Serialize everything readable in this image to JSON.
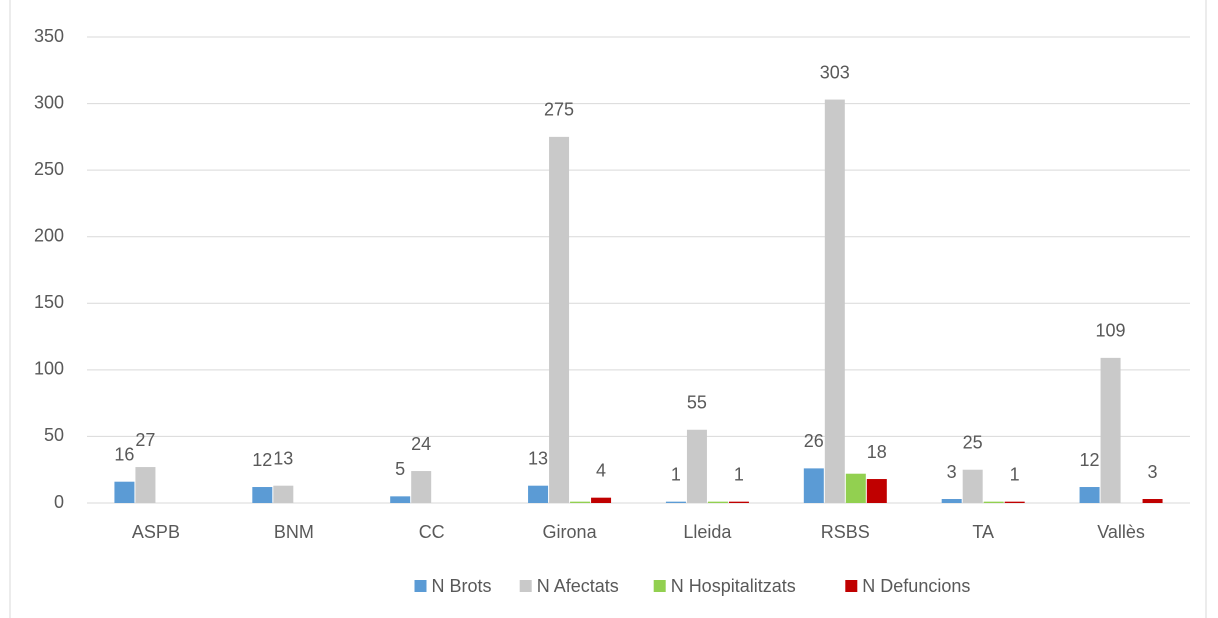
{
  "chart_data": {
    "type": "bar",
    "categories": [
      "ASPB",
      "BNM",
      "CC",
      "Girona",
      "Lleida",
      "RSBS",
      "TA",
      "Vallès"
    ],
    "series": [
      {
        "name": "N Brots",
        "color": "#5b9bd5",
        "show_labels": true,
        "values": [
          16,
          12,
          5,
          13,
          1,
          26,
          3,
          12
        ]
      },
      {
        "name": "N Afectats",
        "color": "#c9c9c9",
        "show_labels": true,
        "values": [
          27,
          13,
          24,
          275,
          55,
          303,
          25,
          109
        ]
      },
      {
        "name": "N Hospitalitzats",
        "color": "#92d050",
        "show_labels": false,
        "values": [
          null,
          null,
          null,
          1,
          1,
          22,
          1,
          null
        ]
      },
      {
        "name": "N Defuncions",
        "color": "#c00000",
        "show_labels": true,
        "values": [
          null,
          null,
          null,
          4,
          1,
          18,
          1,
          3
        ]
      }
    ],
    "ylim": [
      0,
      350
    ],
    "yticks": [
      0,
      50,
      100,
      150,
      200,
      250,
      300,
      350
    ],
    "grid": true,
    "legend": "bottom"
  }
}
